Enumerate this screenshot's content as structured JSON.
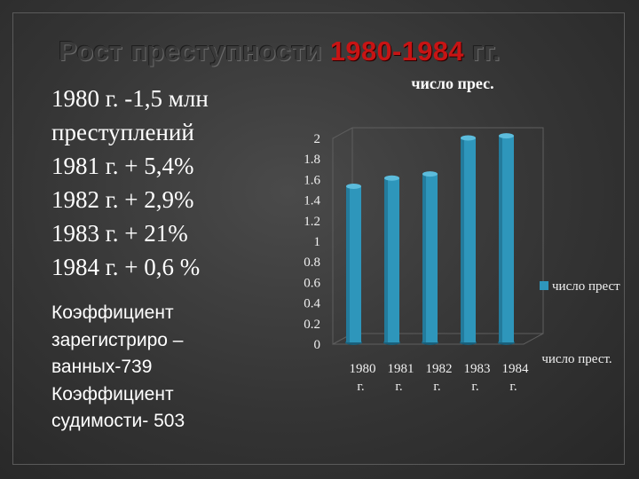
{
  "slide": {
    "title_part1": "Рост преступности ",
    "title_part2": "1980-1984",
    "title_part3": " гг.",
    "stats_lines": [
      "1980 г. -1,5 млн",
      "преступлений",
      "1981 г.  + 5,4%",
      "1982 г.  + 2,9%",
      "1983 г.  + 21%",
      "1984 г.  + 0,6 %"
    ],
    "coef_lines": [
      "Коэффициент",
      "зарегистриро –",
      "ванных-739",
      "Коэффициент",
      "судимости- 503"
    ]
  },
  "colors": {
    "bar": "#2e96bb",
    "bar_top": "#5cbcdc",
    "axis_text": "#f0f0f0",
    "title_accent": "#c81414"
  },
  "chart_data": {
    "type": "bar",
    "title": "число прес.",
    "categories": [
      [
        "1980",
        "г."
      ],
      [
        "1981",
        "г."
      ],
      [
        "1982",
        "г."
      ],
      [
        "1983",
        "г."
      ],
      [
        "1984",
        "г."
      ]
    ],
    "series": [
      {
        "name": "число прест.",
        "values": [
          1.5,
          1.58,
          1.62,
          1.97,
          1.99
        ]
      }
    ],
    "ylim": [
      0,
      2
    ],
    "yticks": [
      "0",
      "0.2",
      "0.4",
      "0.6",
      "0.8",
      "1",
      "1.2",
      "1.4",
      "1.6",
      "1.8",
      "2"
    ],
    "legend_label": "число прест",
    "legend_position": "right",
    "axis_note": "число прест."
  }
}
